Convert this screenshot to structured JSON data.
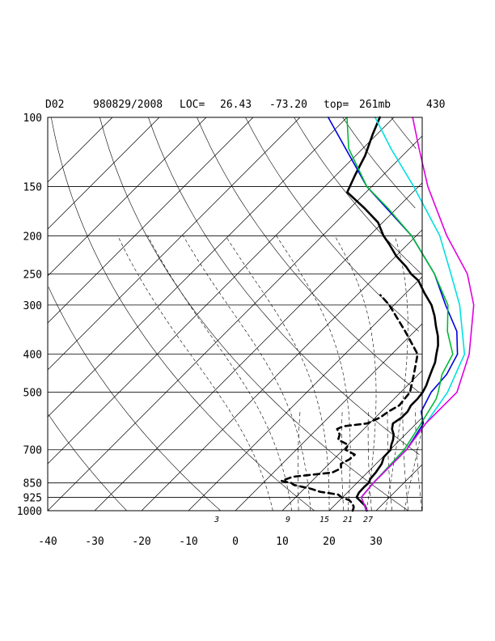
{
  "header": {
    "domain_label": "D02",
    "datetime": "980829/2008",
    "loc_label": "LOC=",
    "lat": "26.43",
    "lon": "-73.20",
    "top_label": "top=",
    "top_value": "261mb",
    "extra": "430"
  },
  "chart_data": {
    "type": "line",
    "subtype": "skew-T log-P sounding",
    "title": "",
    "xlabel": "",
    "ylabel": "",
    "pressure_levels": [
      100,
      150,
      200,
      250,
      300,
      400,
      500,
      700,
      850,
      925,
      1000
    ],
    "pressure_tick_labels": [
      "100",
      "150",
      "200",
      "250",
      "300",
      "400",
      "500",
      "700",
      "850",
      "925",
      "1000"
    ],
    "temperature_ticks": [
      -40,
      -30,
      -20,
      -10,
      0,
      10,
      20,
      30
    ],
    "temperature_tick_labels": [
      "-40",
      "-30",
      "-20",
      "-10",
      "0",
      "10",
      "20",
      "30"
    ],
    "x_range_at_1000mb": [
      -40,
      40
    ],
    "y_range_mb": [
      100,
      1000
    ],
    "log_pressure": true,
    "mixing_ratio_labels": [
      "3",
      "9",
      "15",
      "21",
      "27"
    ],
    "series": [
      {
        "id": "temperature",
        "style": "solid",
        "color": "#000000",
        "points": [
          [
            1000,
            28
          ],
          [
            970,
            26.5
          ],
          [
            925,
            23
          ],
          [
            900,
            22.5
          ],
          [
            870,
            22.4
          ],
          [
            850,
            22.5
          ],
          [
            830,
            22
          ],
          [
            800,
            21.8
          ],
          [
            760,
            21.2
          ],
          [
            730,
            20.2
          ],
          [
            700,
            20.1
          ],
          [
            680,
            19.2
          ],
          [
            660,
            18.5
          ],
          [
            640,
            17.5
          ],
          [
            620,
            16
          ],
          [
            600,
            15
          ],
          [
            580,
            15.6
          ],
          [
            560,
            15.6
          ],
          [
            540,
            15
          ],
          [
            520,
            15
          ],
          [
            500,
            14.7
          ],
          [
            480,
            14
          ],
          [
            460,
            13
          ],
          [
            440,
            12
          ],
          [
            420,
            11
          ],
          [
            400,
            9.5
          ],
          [
            380,
            8
          ],
          [
            360,
            6
          ],
          [
            340,
            3.5
          ],
          [
            320,
            1
          ],
          [
            300,
            -2
          ],
          [
            280,
            -6
          ],
          [
            260,
            -10
          ],
          [
            250,
            -13
          ],
          [
            240,
            -15.5
          ],
          [
            225,
            -20
          ],
          [
            210,
            -24
          ],
          [
            200,
            -27
          ],
          [
            185,
            -31
          ],
          [
            170,
            -37
          ],
          [
            155,
            -44
          ],
          [
            140,
            -46
          ],
          [
            125,
            -48
          ],
          [
            110,
            -51
          ],
          [
            100,
            -53
          ]
        ]
      },
      {
        "id": "dewpoint",
        "style": "dashed",
        "color": "#000000",
        "points": [
          [
            1000,
            25
          ],
          [
            980,
            24.5
          ],
          [
            960,
            23.5
          ],
          [
            940,
            22
          ],
          [
            925,
            19.8
          ],
          [
            910,
            18.5
          ],
          [
            895,
            14
          ],
          [
            880,
            11.5
          ],
          [
            860,
            7
          ],
          [
            850,
            6
          ],
          [
            840,
            3.5
          ],
          [
            820,
            5
          ],
          [
            800,
            12.5
          ],
          [
            780,
            13.5
          ],
          [
            760,
            12.5
          ],
          [
            740,
            13.4
          ],
          [
            720,
            13.5
          ],
          [
            700,
            10.5
          ],
          [
            680,
            10
          ],
          [
            660,
            6.8
          ],
          [
            640,
            6
          ],
          [
            620,
            4.3
          ],
          [
            610,
            5
          ],
          [
            600,
            9.5
          ],
          [
            580,
            11
          ],
          [
            560,
            11.5
          ],
          [
            540,
            12.5
          ],
          [
            500,
            12
          ],
          [
            450,
            9
          ],
          [
            400,
            5.5
          ],
          [
            350,
            -2
          ],
          [
            300,
            -11
          ],
          [
            283,
            -15
          ]
        ]
      },
      {
        "id": "blue",
        "style": "solid",
        "color": "#0000dd",
        "points": [
          [
            1000,
            28
          ],
          [
            925,
            24
          ],
          [
            850,
            23.5
          ],
          [
            700,
            23.5
          ],
          [
            600,
            21.5
          ],
          [
            560,
            18.5
          ],
          [
            500,
            16.5
          ],
          [
            450,
            16
          ],
          [
            400,
            14
          ],
          [
            350,
            9
          ],
          [
            300,
            1
          ],
          [
            250,
            -8
          ],
          [
            200,
            -21
          ],
          [
            150,
            -41
          ],
          [
            100,
            -64
          ]
        ]
      },
      {
        "id": "green",
        "style": "solid",
        "color": "#00bb33",
        "points": [
          [
            1000,
            28
          ],
          [
            925,
            24
          ],
          [
            850,
            23.5
          ],
          [
            700,
            23
          ],
          [
            600,
            21
          ],
          [
            520,
            19
          ],
          [
            500,
            18
          ],
          [
            450,
            15
          ],
          [
            400,
            13
          ],
          [
            350,
            7
          ],
          [
            300,
            1.5
          ],
          [
            250,
            -8
          ],
          [
            200,
            -21
          ],
          [
            170,
            -32
          ],
          [
            150,
            -41
          ],
          [
            120,
            -53
          ],
          [
            100,
            -60
          ]
        ]
      },
      {
        "id": "cyan",
        "style": "solid",
        "color": "#00e0e0",
        "points": [
          [
            1000,
            28
          ],
          [
            925,
            24
          ],
          [
            850,
            23.5
          ],
          [
            700,
            23.5
          ],
          [
            600,
            22
          ],
          [
            500,
            20
          ],
          [
            400,
            15.5
          ],
          [
            300,
            4
          ],
          [
            250,
            -4.5
          ],
          [
            200,
            -15
          ],
          [
            150,
            -31
          ],
          [
            120,
            -44
          ],
          [
            100,
            -54
          ]
        ]
      },
      {
        "id": "magenta",
        "style": "solid",
        "color": "#e000e0",
        "points": [
          [
            1000,
            28
          ],
          [
            925,
            24
          ],
          [
            850,
            23.5
          ],
          [
            700,
            23.5
          ],
          [
            600,
            22
          ],
          [
            500,
            22
          ],
          [
            400,
            16.5
          ],
          [
            300,
            7
          ],
          [
            250,
            -1
          ],
          [
            200,
            -13.5
          ],
          [
            150,
            -28
          ],
          [
            120,
            -38
          ],
          [
            100,
            -46
          ]
        ]
      }
    ]
  }
}
